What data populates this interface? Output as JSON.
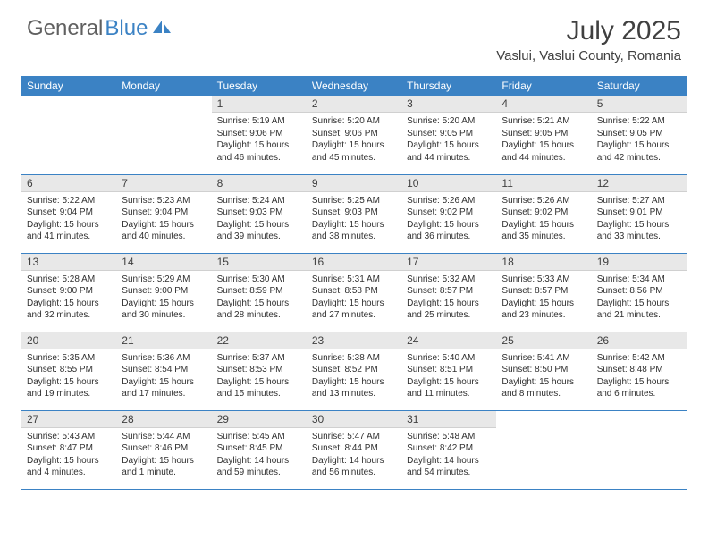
{
  "logo": {
    "text1": "General",
    "text2": "Blue"
  },
  "title": "July 2025",
  "location": "Vaslui, Vaslui County, Romania",
  "colors": {
    "header_bg": "#3b82c4",
    "daynum_bg": "#e8e8e8",
    "text": "#404040",
    "border": "#3b82c4"
  },
  "day_names": [
    "Sunday",
    "Monday",
    "Tuesday",
    "Wednesday",
    "Thursday",
    "Friday",
    "Saturday"
  ],
  "weeks": [
    [
      {
        "n": "",
        "sr": "",
        "ss": "",
        "dl": ""
      },
      {
        "n": "",
        "sr": "",
        "ss": "",
        "dl": ""
      },
      {
        "n": "1",
        "sr": "Sunrise: 5:19 AM",
        "ss": "Sunset: 9:06 PM",
        "dl": "Daylight: 15 hours and 46 minutes."
      },
      {
        "n": "2",
        "sr": "Sunrise: 5:20 AM",
        "ss": "Sunset: 9:06 PM",
        "dl": "Daylight: 15 hours and 45 minutes."
      },
      {
        "n": "3",
        "sr": "Sunrise: 5:20 AM",
        "ss": "Sunset: 9:05 PM",
        "dl": "Daylight: 15 hours and 44 minutes."
      },
      {
        "n": "4",
        "sr": "Sunrise: 5:21 AM",
        "ss": "Sunset: 9:05 PM",
        "dl": "Daylight: 15 hours and 44 minutes."
      },
      {
        "n": "5",
        "sr": "Sunrise: 5:22 AM",
        "ss": "Sunset: 9:05 PM",
        "dl": "Daylight: 15 hours and 42 minutes."
      }
    ],
    [
      {
        "n": "6",
        "sr": "Sunrise: 5:22 AM",
        "ss": "Sunset: 9:04 PM",
        "dl": "Daylight: 15 hours and 41 minutes."
      },
      {
        "n": "7",
        "sr": "Sunrise: 5:23 AM",
        "ss": "Sunset: 9:04 PM",
        "dl": "Daylight: 15 hours and 40 minutes."
      },
      {
        "n": "8",
        "sr": "Sunrise: 5:24 AM",
        "ss": "Sunset: 9:03 PM",
        "dl": "Daylight: 15 hours and 39 minutes."
      },
      {
        "n": "9",
        "sr": "Sunrise: 5:25 AM",
        "ss": "Sunset: 9:03 PM",
        "dl": "Daylight: 15 hours and 38 minutes."
      },
      {
        "n": "10",
        "sr": "Sunrise: 5:26 AM",
        "ss": "Sunset: 9:02 PM",
        "dl": "Daylight: 15 hours and 36 minutes."
      },
      {
        "n": "11",
        "sr": "Sunrise: 5:26 AM",
        "ss": "Sunset: 9:02 PM",
        "dl": "Daylight: 15 hours and 35 minutes."
      },
      {
        "n": "12",
        "sr": "Sunrise: 5:27 AM",
        "ss": "Sunset: 9:01 PM",
        "dl": "Daylight: 15 hours and 33 minutes."
      }
    ],
    [
      {
        "n": "13",
        "sr": "Sunrise: 5:28 AM",
        "ss": "Sunset: 9:00 PM",
        "dl": "Daylight: 15 hours and 32 minutes."
      },
      {
        "n": "14",
        "sr": "Sunrise: 5:29 AM",
        "ss": "Sunset: 9:00 PM",
        "dl": "Daylight: 15 hours and 30 minutes."
      },
      {
        "n": "15",
        "sr": "Sunrise: 5:30 AM",
        "ss": "Sunset: 8:59 PM",
        "dl": "Daylight: 15 hours and 28 minutes."
      },
      {
        "n": "16",
        "sr": "Sunrise: 5:31 AM",
        "ss": "Sunset: 8:58 PM",
        "dl": "Daylight: 15 hours and 27 minutes."
      },
      {
        "n": "17",
        "sr": "Sunrise: 5:32 AM",
        "ss": "Sunset: 8:57 PM",
        "dl": "Daylight: 15 hours and 25 minutes."
      },
      {
        "n": "18",
        "sr": "Sunrise: 5:33 AM",
        "ss": "Sunset: 8:57 PM",
        "dl": "Daylight: 15 hours and 23 minutes."
      },
      {
        "n": "19",
        "sr": "Sunrise: 5:34 AM",
        "ss": "Sunset: 8:56 PM",
        "dl": "Daylight: 15 hours and 21 minutes."
      }
    ],
    [
      {
        "n": "20",
        "sr": "Sunrise: 5:35 AM",
        "ss": "Sunset: 8:55 PM",
        "dl": "Daylight: 15 hours and 19 minutes."
      },
      {
        "n": "21",
        "sr": "Sunrise: 5:36 AM",
        "ss": "Sunset: 8:54 PM",
        "dl": "Daylight: 15 hours and 17 minutes."
      },
      {
        "n": "22",
        "sr": "Sunrise: 5:37 AM",
        "ss": "Sunset: 8:53 PM",
        "dl": "Daylight: 15 hours and 15 minutes."
      },
      {
        "n": "23",
        "sr": "Sunrise: 5:38 AM",
        "ss": "Sunset: 8:52 PM",
        "dl": "Daylight: 15 hours and 13 minutes."
      },
      {
        "n": "24",
        "sr": "Sunrise: 5:40 AM",
        "ss": "Sunset: 8:51 PM",
        "dl": "Daylight: 15 hours and 11 minutes."
      },
      {
        "n": "25",
        "sr": "Sunrise: 5:41 AM",
        "ss": "Sunset: 8:50 PM",
        "dl": "Daylight: 15 hours and 8 minutes."
      },
      {
        "n": "26",
        "sr": "Sunrise: 5:42 AM",
        "ss": "Sunset: 8:48 PM",
        "dl": "Daylight: 15 hours and 6 minutes."
      }
    ],
    [
      {
        "n": "27",
        "sr": "Sunrise: 5:43 AM",
        "ss": "Sunset: 8:47 PM",
        "dl": "Daylight: 15 hours and 4 minutes."
      },
      {
        "n": "28",
        "sr": "Sunrise: 5:44 AM",
        "ss": "Sunset: 8:46 PM",
        "dl": "Daylight: 15 hours and 1 minute."
      },
      {
        "n": "29",
        "sr": "Sunrise: 5:45 AM",
        "ss": "Sunset: 8:45 PM",
        "dl": "Daylight: 14 hours and 59 minutes."
      },
      {
        "n": "30",
        "sr": "Sunrise: 5:47 AM",
        "ss": "Sunset: 8:44 PM",
        "dl": "Daylight: 14 hours and 56 minutes."
      },
      {
        "n": "31",
        "sr": "Sunrise: 5:48 AM",
        "ss": "Sunset: 8:42 PM",
        "dl": "Daylight: 14 hours and 54 minutes."
      },
      {
        "n": "",
        "sr": "",
        "ss": "",
        "dl": ""
      },
      {
        "n": "",
        "sr": "",
        "ss": "",
        "dl": ""
      }
    ]
  ]
}
